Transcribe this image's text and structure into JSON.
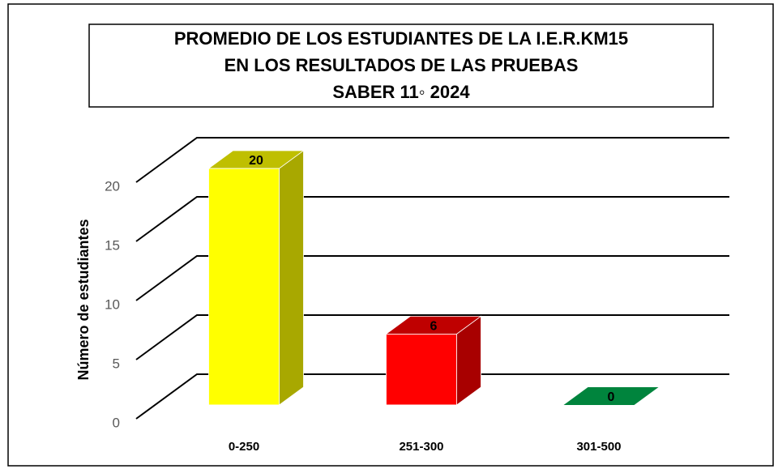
{
  "chart_data": {
    "type": "bar3d",
    "title": [
      "PROMEDIO DE LOS ESTUDIANTES DE LA I.E.R.KM15",
      "EN LOS RESULTADOS DE LAS PRUEBAS",
      "SABER 11◦  2024"
    ],
    "y_label": "Número de estudiantes",
    "categories": [
      "0-250",
      "251-300",
      "301-500"
    ],
    "values": [
      20,
      6,
      0
    ],
    "colors": [
      "#ffff00",
      "#ff0000",
      "#00843d"
    ],
    "ylim": [
      0,
      20
    ],
    "yticks": [
      0,
      5,
      10,
      15,
      20
    ],
    "grid": true
  }
}
